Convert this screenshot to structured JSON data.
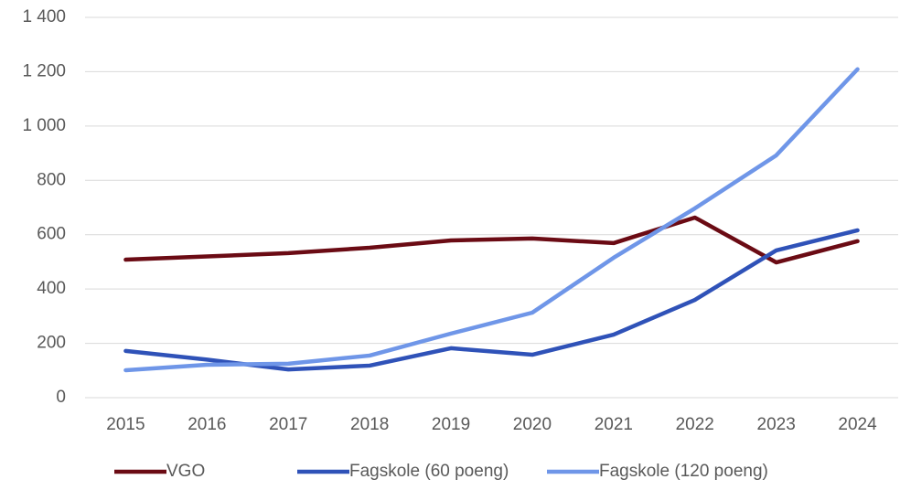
{
  "chart_data": {
    "type": "line",
    "categories": [
      "2015",
      "2016",
      "2017",
      "2018",
      "2019",
      "2020",
      "2021",
      "2022",
      "2023",
      "2024"
    ],
    "series": [
      {
        "name": "VGO",
        "color": "#6b0b14",
        "values": [
          508,
          520,
          532,
          552,
          579,
          586,
          569,
          663,
          498,
          576
        ]
      },
      {
        "name": "Fagskole (60 poeng)",
        "color": "#2f52b8",
        "values": [
          172,
          140,
          104,
          118,
          182,
          158,
          232,
          360,
          542,
          616
        ]
      },
      {
        "name": "Fagskole (120 poeng)",
        "color": "#6f96e8",
        "values": [
          101,
          121,
          125,
          155,
          236,
          313,
          515,
          697,
          892,
          1209
        ]
      }
    ],
    "ylim": [
      0,
      1400
    ],
    "yticks": [
      0,
      200,
      400,
      600,
      800,
      {
        "value": 1000,
        "label": "1 000"
      },
      {
        "value": 1200,
        "label": "1 200"
      },
      {
        "value": 1400,
        "label": "1 400"
      }
    ],
    "grid": true,
    "legend": "bottom"
  }
}
